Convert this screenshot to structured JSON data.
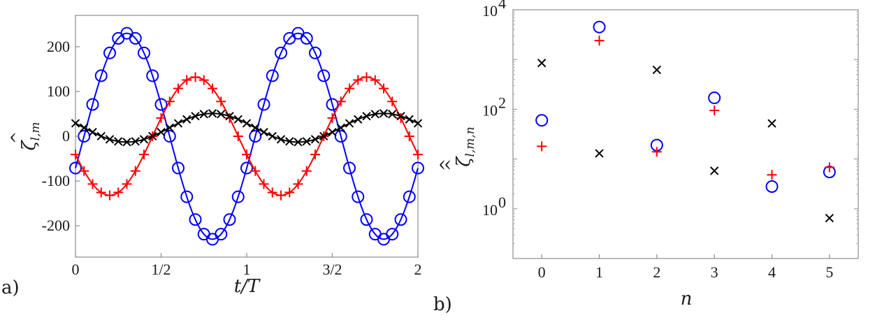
{
  "chart_data": [
    {
      "panel_label": "a)",
      "type": "line",
      "xlabel": "t/T",
      "ylabel": "ζ̂_{l,m}",
      "ylabel_main": "ζ",
      "ylabel_sub": "l,m",
      "xlim": [
        0,
        2
      ],
      "ylim": [
        -270,
        270
      ],
      "xticks": [
        0,
        0.5,
        1,
        1.5,
        2
      ],
      "xtick_labels": [
        "0",
        "1/2",
        "1",
        "3/2",
        "2"
      ],
      "yticks": [
        200,
        100,
        0,
        -100,
        -200
      ],
      "ytick_labels": [
        "200",
        "100",
        "0",
        "-100",
        "-200"
      ],
      "n_markers": 41,
      "series": [
        {
          "name": "circle-series",
          "marker": "circle",
          "color": "#0000ff",
          "mean": 0,
          "amp": 230,
          "phase": -1.885
        },
        {
          "name": "plus-series",
          "marker": "plus",
          "color": "#ff0000",
          "mean": 0,
          "amp": 132,
          "phase": 1.885
        },
        {
          "name": "cross-series",
          "marker": "cross",
          "color": "#000000",
          "mean": 19,
          "amp": 32,
          "phase": 1.2566
        }
      ]
    },
    {
      "panel_label": "b)",
      "type": "scatter",
      "xlabel": "n",
      "ylabel": "ζ̂̂_{l,m,n}",
      "ylabel_main": "ζ",
      "ylabel_sub": "l,m,n",
      "yscale": "log",
      "xlim": [
        -0.5,
        5.5
      ],
      "ylim_log10": [
        -1,
        4
      ],
      "x": [
        0,
        1,
        2,
        3,
        4,
        5
      ],
      "xtick_labels": [
        "0",
        "1",
        "2",
        "3",
        "4",
        "5"
      ],
      "ytick_bases": [
        "10",
        "10",
        "10"
      ],
      "ytick_exps": [
        "4",
        "2",
        "0"
      ],
      "ytick_values_log10": [
        4,
        2,
        0
      ],
      "series": [
        {
          "name": "circle-series",
          "marker": "circle",
          "color": "#0000ff",
          "values": [
            60,
            4500,
            19,
            170,
            2.8,
            5.5
          ]
        },
        {
          "name": "plus-series",
          "marker": "plus",
          "color": "#ff0000",
          "values": [
            18,
            2400,
            14,
            95,
            4.8,
            6.8
          ]
        },
        {
          "name": "cross-series",
          "marker": "cross",
          "color": "#000000",
          "values": [
            850,
            13,
            620,
            5.8,
            52,
            0.65
          ]
        }
      ]
    }
  ]
}
